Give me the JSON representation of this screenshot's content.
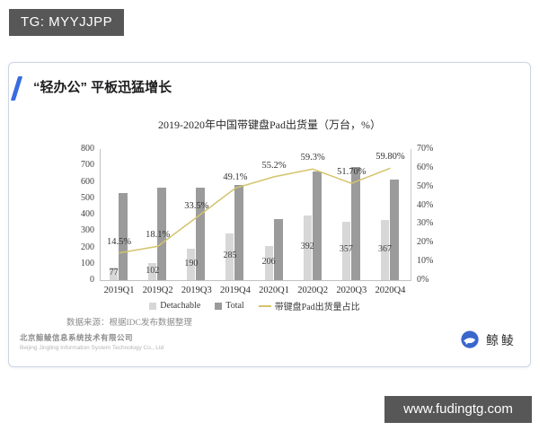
{
  "badge": {
    "text": "TG: MYYJJPP"
  },
  "watermark_bar": {
    "url": "www.fudingtg.com"
  },
  "card": {
    "title": "“轻办公” 平板迅猛增长",
    "source_note": "数据来源：根据IDC发布数据整理",
    "company": {
      "name_cn": "北京鲸鲮信息系统技术有限公司",
      "name_en": "Beijing Jingling Information System Technology Co., Ltd"
    },
    "logo": {
      "brand": "鲸鲮"
    }
  },
  "chart_data": {
    "type": "bar",
    "title": "2019-2020年中国带键盘Pad出货量（万台，%）",
    "categories": [
      "2019Q1",
      "2019Q2",
      "2019Q3",
      "2019Q4",
      "2020Q1",
      "2020Q2",
      "2020Q3",
      "2020Q4"
    ],
    "series": [
      {
        "name": "Detachable",
        "kind": "bar",
        "color": "#d7d7d7",
        "values": [
          77,
          102,
          190,
          285,
          206,
          392,
          357,
          367
        ],
        "value_labels": [
          "77",
          "102",
          "190",
          "285",
          "206",
          "392",
          "357",
          "367"
        ]
      },
      {
        "name": "Total",
        "kind": "bar",
        "color": "#9b9b9b",
        "values": [
          531,
          564,
          567,
          580,
          373,
          661,
          690,
          614
        ]
      },
      {
        "name": "带键盘Pad出货量占比",
        "kind": "line",
        "color": "#d3c46c",
        "values": [
          14.5,
          18.1,
          33.5,
          49.1,
          55.2,
          59.3,
          51.7,
          59.8
        ],
        "value_labels": [
          "14.5%",
          "18.1%",
          "33.5%",
          "49.1%",
          "55.2%",
          "59.3%",
          "51.70%",
          "59.80%"
        ]
      }
    ],
    "left_axis": {
      "min": 0,
      "max": 800,
      "ticks": [
        "0",
        "100",
        "200",
        "300",
        "400",
        "500",
        "600",
        "700",
        "800"
      ]
    },
    "right_axis": {
      "min": 0,
      "max": 70,
      "ticks": [
        "0%",
        "10%",
        "20%",
        "30%",
        "40%",
        "50%",
        "60%",
        "70%"
      ]
    },
    "grid": false,
    "legend_position": "bottom"
  }
}
